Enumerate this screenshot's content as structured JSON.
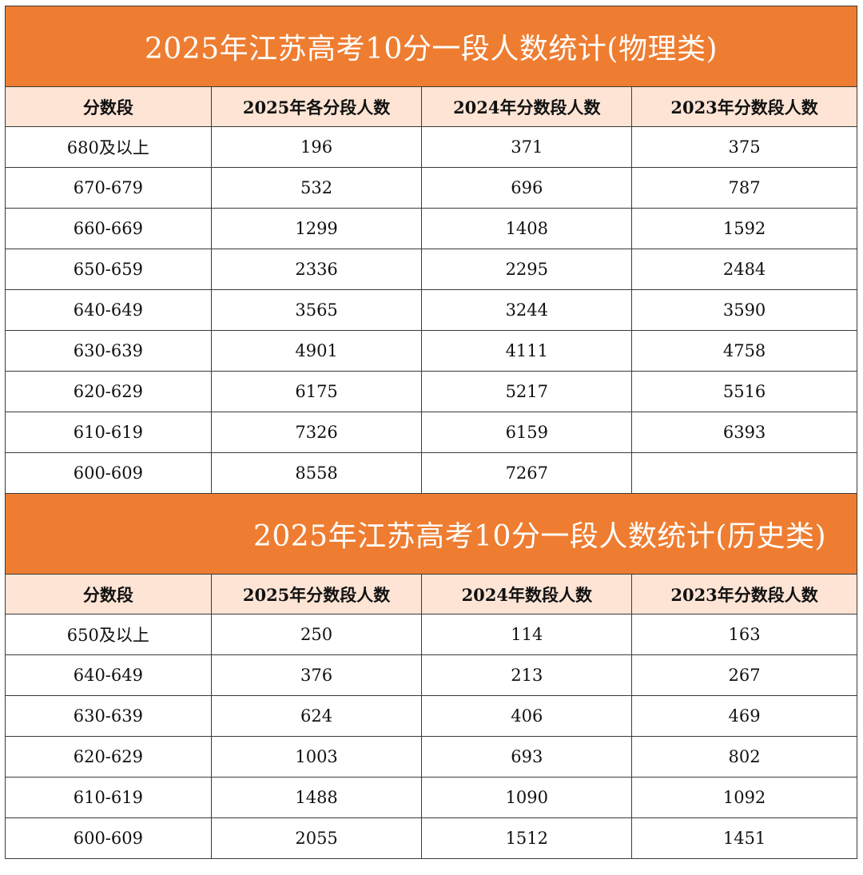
{
  "physics": {
    "title": "2025年江苏高考10分一段人数统计(物理类)",
    "headers": [
      "分数段",
      "2025年各分段人数",
      "2024年分数段人数",
      "2023年分数段人数"
    ],
    "rows": [
      [
        "680及以上",
        "196",
        "371",
        "375"
      ],
      [
        "670-679",
        "532",
        "696",
        "787"
      ],
      [
        "660-669",
        "1299",
        "1408",
        "1592"
      ],
      [
        "650-659",
        "2336",
        "2295",
        "2484"
      ],
      [
        "640-649",
        "3565",
        "3244",
        "3590"
      ],
      [
        "630-639",
        "4901",
        "4111",
        "4758"
      ],
      [
        "620-629",
        "6175",
        "5217",
        "5516"
      ],
      [
        "610-619",
        "7326",
        "6159",
        "6393"
      ],
      [
        "600-609",
        "8558",
        "7267",
        ""
      ]
    ]
  },
  "history": {
    "title": "2025年江苏高考10分一段人数统计(历史类)",
    "headers": [
      "分数段",
      "2025年分数段人数",
      "2024年数段人数",
      "2023年分数段人数"
    ],
    "rows": [
      [
        "650及以上",
        "250",
        "114",
        "163"
      ],
      [
        "640-649",
        "376",
        "213",
        "267"
      ],
      [
        "630-639",
        "624",
        "406",
        "469"
      ],
      [
        "620-629",
        "1003",
        "693",
        "802"
      ],
      [
        "610-619",
        "1488",
        "1090",
        "1092"
      ],
      [
        "600-609",
        "2055",
        "1512",
        "1451"
      ]
    ]
  }
}
